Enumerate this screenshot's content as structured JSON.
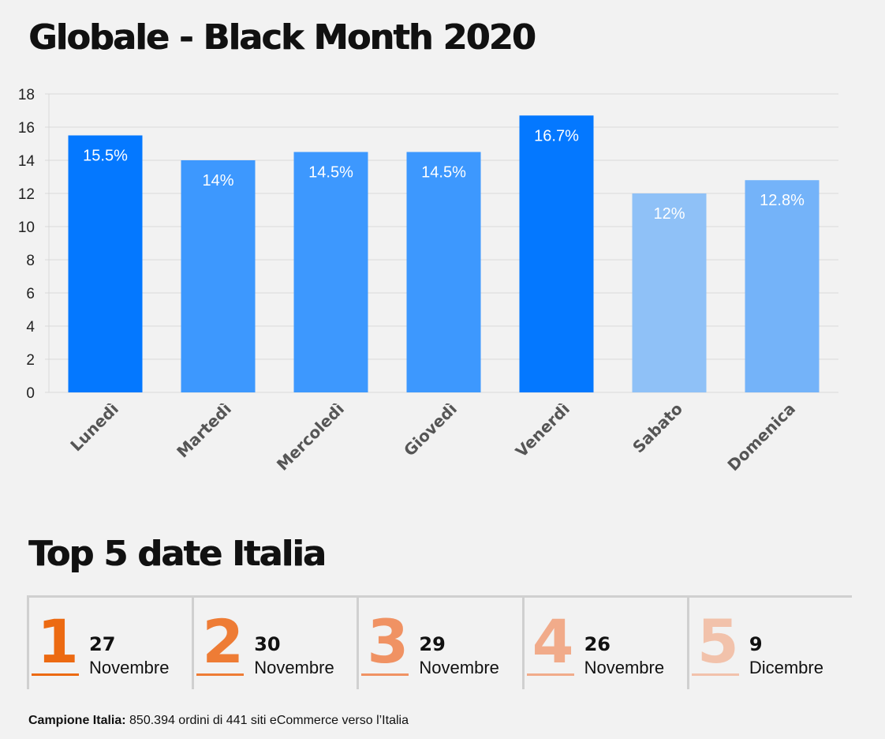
{
  "title": "Globale - Black Month 2020",
  "chart_data": {
    "type": "bar",
    "categories": [
      "Lunedì",
      "Martedì",
      "Mercoledì",
      "Giovedì",
      "Venerdì",
      "Sabato",
      "Domenica"
    ],
    "values": [
      15.5,
      14,
      14.5,
      14.5,
      16.7,
      12,
      12.8
    ],
    "data_labels": [
      "15.5%",
      "14%",
      "14.5%",
      "14.5%",
      "16.7%",
      "12%",
      "12.8%"
    ],
    "ylim": [
      0,
      18
    ],
    "yticks": [
      0,
      2,
      4,
      6,
      8,
      10,
      12,
      14,
      16,
      18
    ],
    "xlabel": "",
    "ylabel": "",
    "grid": true,
    "bar_colors": [
      "#0478ff",
      "#3d98fe",
      "#3d98fe",
      "#3d98fe",
      "#0478ff",
      "#8fc1f7",
      "#74b3f9"
    ]
  },
  "top5": {
    "heading": "Top 5 date Italia",
    "items": [
      {
        "rank": "1",
        "day": "27",
        "month": "Novembre",
        "color": "#ec6a12"
      },
      {
        "rank": "2",
        "day": "30",
        "month": "Novembre",
        "color": "#ee7c35"
      },
      {
        "rank": "3",
        "day": "29",
        "month": "Novembre",
        "color": "#f09263"
      },
      {
        "rank": "4",
        "day": "26",
        "month": "Novembre",
        "color": "#f1ab8a"
      },
      {
        "rank": "5",
        "day": "9",
        "month": "Dicembre",
        "color": "#f2c2ab"
      }
    ]
  },
  "footnote": {
    "label": "Campione Italia:",
    "text": " 850.394 ordini di 441 siti eCommerce verso l’Italia"
  }
}
